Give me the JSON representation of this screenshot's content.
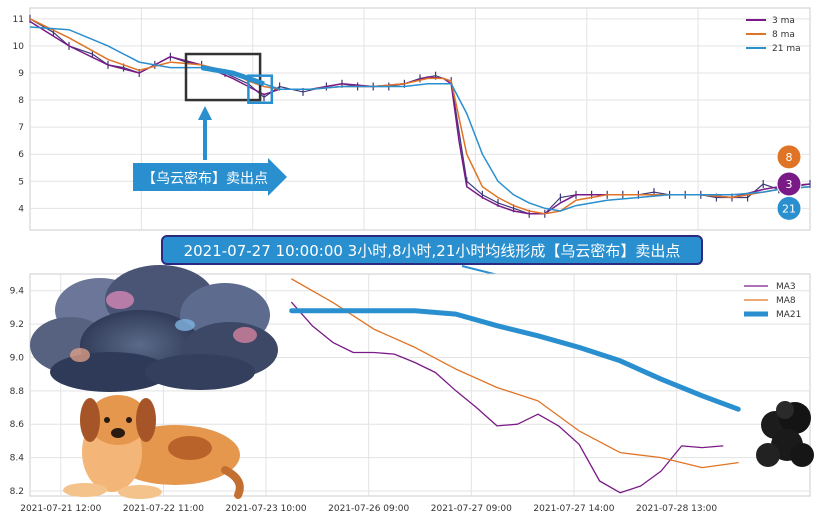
{
  "chart_data": [
    {
      "type": "line",
      "ylim": [
        3.2,
        11.4
      ],
      "yticks": [
        4,
        5,
        6,
        7,
        8,
        9,
        10,
        11
      ],
      "grid": true,
      "legend_position": "top-right",
      "price_x": [
        0,
        3,
        5,
        8,
        10,
        12,
        14,
        16,
        18,
        20,
        22,
        25,
        28,
        30,
        32,
        35,
        38,
        40,
        42,
        44,
        46,
        48,
        50,
        52,
        54,
        56,
        58,
        60,
        62,
        64,
        66,
        68,
        70,
        72,
        74,
        76,
        78,
        80,
        82,
        84,
        86,
        88,
        90,
        92,
        94,
        96,
        98,
        100
      ],
      "price_y": [
        11.0,
        10.5,
        10.0,
        9.7,
        9.3,
        9.2,
        9.0,
        9.3,
        9.6,
        9.4,
        9.3,
        9.0,
        8.6,
        8.1,
        8.5,
        8.3,
        8.5,
        8.6,
        8.5,
        8.5,
        8.5,
        8.6,
        8.8,
        8.9,
        8.7,
        5.0,
        4.5,
        4.2,
        4.0,
        3.8,
        3.8,
        4.4,
        4.5,
        4.5,
        4.5,
        4.5,
        4.5,
        4.6,
        4.5,
        4.5,
        4.5,
        4.4,
        4.4,
        4.4,
        4.9,
        4.7,
        4.8,
        4.9
      ],
      "series": [
        {
          "name": "3 ma",
          "color": "#7a1a87",
          "x": [
            0,
            5,
            10,
            14,
            18,
            22,
            26,
            28,
            30,
            32,
            36,
            40,
            44,
            48,
            51,
            53,
            54,
            55,
            56,
            58,
            60,
            62,
            64,
            66,
            68,
            70,
            74,
            78,
            82,
            86,
            90,
            94,
            96,
            100
          ],
          "y": [
            10.9,
            10.0,
            9.3,
            9.0,
            9.6,
            9.3,
            8.8,
            8.5,
            8.2,
            8.4,
            8.4,
            8.6,
            8.5,
            8.6,
            8.85,
            8.8,
            8.6,
            6.5,
            4.8,
            4.4,
            4.1,
            3.9,
            3.8,
            3.8,
            4.2,
            4.5,
            4.5,
            4.5,
            4.5,
            4.5,
            4.4,
            4.7,
            4.8,
            4.9
          ]
        },
        {
          "name": "8 ma",
          "color": "#e07426",
          "x": [
            0,
            5,
            10,
            14,
            18,
            22,
            26,
            28,
            30,
            32,
            36,
            40,
            44,
            48,
            51,
            53,
            54,
            56,
            58,
            60,
            62,
            64,
            66,
            68,
            70,
            74,
            78,
            82,
            86,
            90,
            94,
            96,
            100
          ],
          "y": [
            11.0,
            10.3,
            9.5,
            9.1,
            9.4,
            9.3,
            9.0,
            8.7,
            8.5,
            8.4,
            8.4,
            8.5,
            8.5,
            8.6,
            8.8,
            8.8,
            8.7,
            6.0,
            4.8,
            4.4,
            4.1,
            3.9,
            3.8,
            3.9,
            4.3,
            4.5,
            4.5,
            4.5,
            4.5,
            4.4,
            4.6,
            4.7,
            4.8
          ]
        },
        {
          "name": "21 ma",
          "color": "#2a8fcf",
          "x": [
            0,
            5,
            10,
            14,
            18,
            22,
            26,
            28,
            30,
            32,
            36,
            40,
            44,
            48,
            51,
            53,
            54,
            56,
            58,
            60,
            62,
            64,
            66,
            68,
            70,
            74,
            78,
            82,
            86,
            90,
            94,
            96,
            100
          ],
          "y": [
            10.7,
            10.6,
            10.0,
            9.4,
            9.2,
            9.2,
            9.0,
            8.8,
            8.6,
            8.4,
            8.4,
            8.5,
            8.5,
            8.5,
            8.6,
            8.6,
            8.6,
            7.5,
            6.0,
            5.0,
            4.5,
            4.2,
            4.0,
            3.9,
            4.1,
            4.3,
            4.4,
            4.5,
            4.5,
            4.5,
            4.6,
            4.7,
            4.8
          ]
        }
      ],
      "end_badges": [
        {
          "text": "8",
          "color": "#e07426",
          "y": 5.9
        },
        {
          "text": "3",
          "color": "#7a1a87",
          "y": 4.9
        },
        {
          "text": "21",
          "color": "#2a8fcf",
          "y": 4.0
        }
      ],
      "annotation_label": "【乌云密布】卖出点",
      "highlight_rect": {
        "x0": 20,
        "x1": 29.5,
        "y0": 8.0,
        "y1": 9.7
      },
      "small_rect": {
        "x0": 28,
        "x1": 31,
        "y0": 7.9,
        "y1": 8.9
      }
    },
    {
      "type": "line",
      "xticks": [
        "2021-07-21 12:00",
        "2021-07-22 11:00",
        "2021-07-23 10:00",
        "2021-07-26 09:00",
        "2021-07-27 09:00",
        "2021-07-27 14:00",
        "2021-07-28 13:00"
      ],
      "xtick_pos": [
        0,
        1,
        2,
        3,
        4,
        5,
        6
      ],
      "xlim": [
        -0.3,
        7.3
      ],
      "ylim": [
        8.17,
        9.5
      ],
      "yticks": [
        "9.4",
        "9.2",
        "9.0",
        "8.8",
        "8.6",
        "8.4",
        "8.2"
      ],
      "ytick_vals": [
        9.4,
        9.2,
        9.0,
        8.8,
        8.6,
        8.4,
        8.2
      ],
      "grid": true,
      "legend_position": "top-right",
      "series": [
        {
          "name": "MA3",
          "color": "#7a1a87",
          "width": 1.3,
          "x": [
            2.25,
            2.45,
            2.65,
            2.85,
            3.05,
            3.25,
            3.45,
            3.65,
            3.85,
            4.05,
            4.25,
            4.45,
            4.65,
            4.85,
            5.05,
            5.25,
            5.45,
            5.65,
            5.85,
            6.05,
            6.25,
            6.45
          ],
          "y": [
            9.33,
            9.19,
            9.09,
            9.03,
            9.03,
            9.02,
            8.97,
            8.91,
            8.8,
            8.7,
            8.59,
            8.6,
            8.66,
            8.59,
            8.48,
            8.26,
            8.19,
            8.23,
            8.32,
            8.47,
            8.46,
            8.47
          ]
        },
        {
          "name": "MA8",
          "color": "#e07426",
          "width": 1.3,
          "x": [
            2.25,
            2.65,
            3.05,
            3.45,
            3.85,
            4.25,
            4.65,
            5.05,
            5.45,
            5.85,
            6.25,
            6.6
          ],
          "y": [
            9.47,
            9.33,
            9.17,
            9.06,
            8.93,
            8.82,
            8.74,
            8.56,
            8.43,
            8.4,
            8.34,
            8.37
          ]
        },
        {
          "name": "MA21",
          "color": "#2a8fcf",
          "width": 5,
          "x": [
            2.25,
            2.65,
            3.05,
            3.45,
            3.85,
            4.25,
            4.65,
            5.05,
            5.45,
            5.85,
            6.25,
            6.6
          ],
          "y": [
            9.28,
            9.28,
            9.28,
            9.28,
            9.26,
            9.19,
            9.13,
            9.06,
            8.98,
            8.87,
            8.77,
            8.69
          ]
        }
      ]
    }
  ],
  "banner_text": "2021-07-27 10:00:00 3小时,8小时,21小时均线形成【乌云密布】卖出点"
}
